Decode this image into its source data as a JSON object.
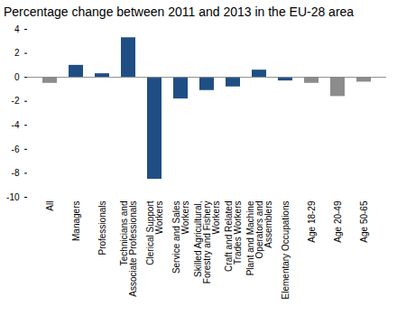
{
  "chart_data": {
    "type": "bar",
    "title": "Percentage change between 2011 and 2013 in the EU-28 area",
    "categories": [
      "All",
      "Managers",
      "Professionals",
      "Technicians and Associate Professionals",
      "Clerical Support Workers",
      "Service and Sales Workers",
      "Skilled Agricultural, Forestry and Fishery Workers",
      "Craft and Related Trades Workers",
      "Plant and Machine Operators and Assemblers",
      "Elementary Occupations",
      "Age 18-29",
      "Age 20-49",
      "Age 50-65"
    ],
    "values": [
      -0.5,
      1.0,
      0.3,
      3.3,
      -8.5,
      -1.8,
      -1.1,
      -0.8,
      0.6,
      -0.3,
      -0.5,
      -1.6,
      -0.4
    ],
    "colors": [
      "#8c8c8c",
      "#1f4e85",
      "#1f4e85",
      "#1f4e85",
      "#1f4e85",
      "#1f4e85",
      "#1f4e85",
      "#1f4e85",
      "#1f4e85",
      "#1f4e85",
      "#8c8c8c",
      "#8c8c8c",
      "#8c8c8c"
    ],
    "ylim": [
      -10,
      4
    ],
    "yticks": [
      -10,
      -8,
      -6,
      -4,
      -2,
      0,
      2,
      4
    ],
    "grid": false
  }
}
